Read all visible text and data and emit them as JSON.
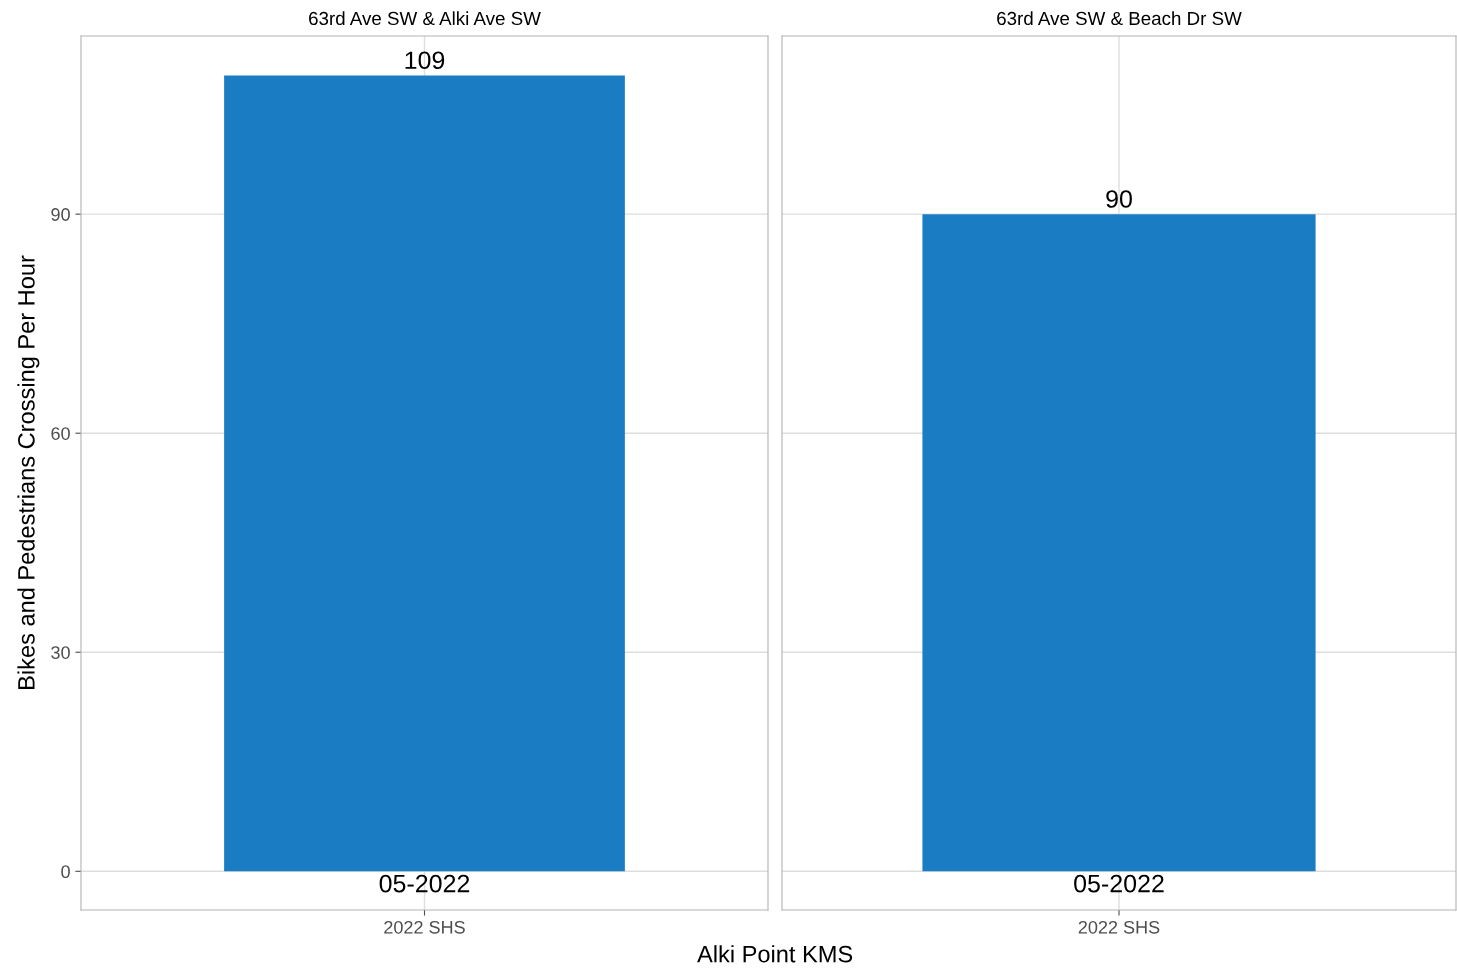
{
  "chart_data": [
    {
      "type": "bar",
      "title": "63rd Ave SW & Alki Ave SW",
      "xlabel": "Alki Point KMS",
      "ylabel": "Bikes and Pedestrians Crossing Per Hour",
      "categories": [
        "2022 SHS"
      ],
      "values": [
        109
      ],
      "color": "#1a7dc4",
      "ylim": [
        -5.3,
        114.4
      ],
      "yticks": [
        0,
        30,
        60,
        90
      ],
      "grid": true,
      "data_labels": true,
      "annotations": [
        "05-2022"
      ]
    },
    {
      "type": "bar",
      "title": "63rd Ave SW & Beach Dr SW",
      "categories": [
        "2022 SHS"
      ],
      "values": [
        90
      ],
      "color": "#1a7dc4",
      "ylim": [
        -5.3,
        114.4
      ],
      "yticks": [
        0,
        30,
        60,
        90
      ],
      "grid": true,
      "data_labels": true,
      "tick_labels": "x",
      "annotations": [
        "05-2022"
      ]
    }
  ]
}
